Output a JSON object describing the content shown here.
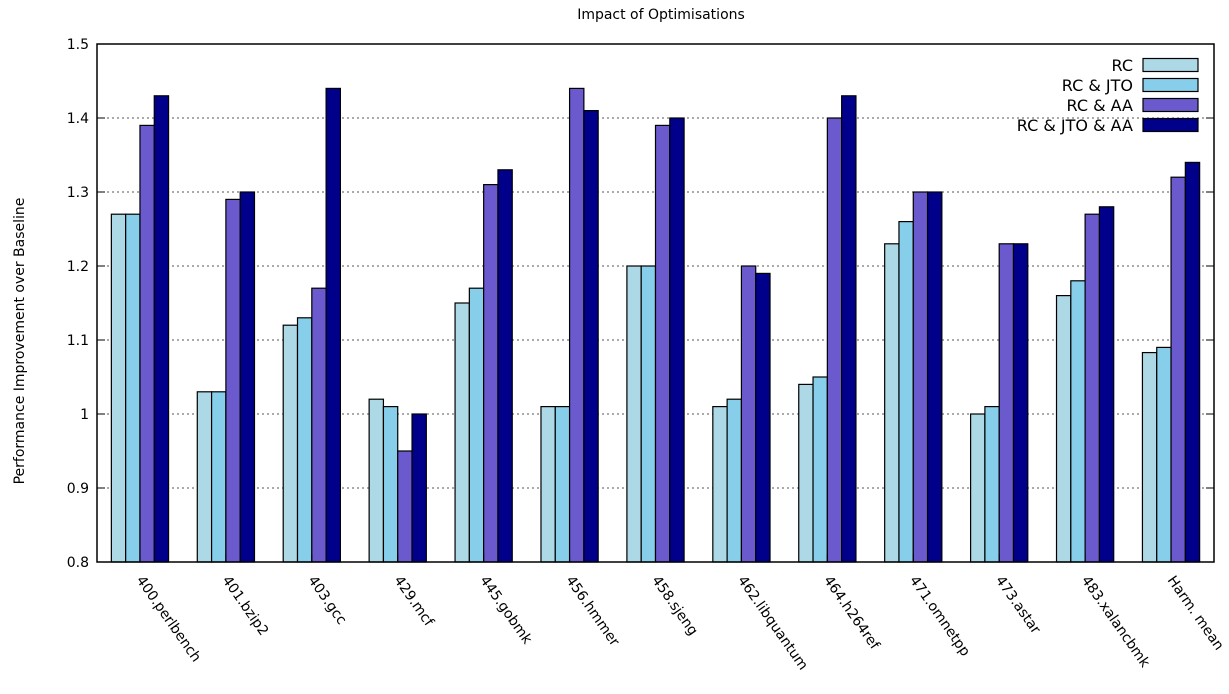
{
  "chart_data": {
    "type": "bar",
    "title": "Impact of Optimisations",
    "xlabel": "",
    "ylabel": "Performance Improvement over Baseline",
    "ylim": [
      0.8,
      1.5
    ],
    "yticks": [
      "0.8",
      "0.9",
      "1",
      "1.1",
      "1.2",
      "1.3",
      "1.4",
      "1.5"
    ],
    "grid": true,
    "legend_position": "top-right",
    "categories": [
      "400.perlbench",
      "401.bzip2",
      "403.gcc",
      "429.mcf",
      "445.gobmk",
      "456.hmmer",
      "458.sjeng",
      "462.libquantum",
      "464.h264ref",
      "471.omnetpp",
      "473.astar",
      "483.xalancbmk",
      "Harm. mean"
    ],
    "series": [
      {
        "name": "RC",
        "color": "#add8e6",
        "values": [
          1.27,
          1.03,
          1.12,
          1.02,
          1.15,
          1.01,
          1.2,
          1.01,
          1.04,
          1.23,
          1.0,
          1.16,
          1.083
        ]
      },
      {
        "name": "RC & JTO",
        "color": "#87ceeb",
        "values": [
          1.27,
          1.03,
          1.13,
          1.01,
          1.17,
          1.01,
          1.2,
          1.02,
          1.05,
          1.26,
          1.01,
          1.18,
          1.09
        ]
      },
      {
        "name": "RC & AA",
        "color": "#6a5acd",
        "values": [
          1.39,
          1.29,
          1.17,
          0.95,
          1.31,
          1.44,
          1.39,
          1.2,
          1.4,
          1.3,
          1.23,
          1.27,
          1.32
        ]
      },
      {
        "name": "RC & JTO & AA",
        "color": "#00008b",
        "values": [
          1.43,
          1.3,
          1.44,
          1.0,
          1.33,
          1.41,
          1.4,
          1.19,
          1.43,
          1.3,
          1.23,
          1.28,
          1.34
        ]
      }
    ]
  }
}
